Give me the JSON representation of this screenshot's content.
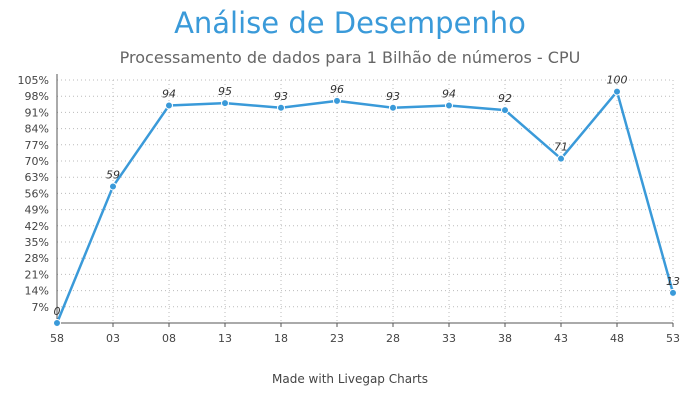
{
  "title": "Análise de Desempenho",
  "subtitle": "Processamento de dados para 1 Bilhão de números - CPU",
  "footer": "Made with Livegap Charts",
  "colors": {
    "title": "#3a9ad9",
    "line": "#3a9ad9",
    "grid": "#bbbbbb",
    "axis": "#555555"
  },
  "chart_data": {
    "type": "line",
    "title": "Análise de Desempenho",
    "subtitle": "Processamento de dados para 1 Bilhão de números - CPU",
    "xlabel": "",
    "ylabel": "",
    "categories": [
      "58",
      "03",
      "08",
      "13",
      "18",
      "23",
      "28",
      "33",
      "38",
      "43",
      "48",
      "53"
    ],
    "series": [
      {
        "values": [
          0,
          59,
          94,
          95,
          93,
          96,
          93,
          94,
          92,
          71,
          100,
          13
        ]
      }
    ],
    "data_labels": [
      "0",
      "59",
      "94",
      "95",
      "93",
      "96",
      "93",
      "94",
      "92",
      "71",
      "100",
      "13"
    ],
    "yticks": [
      "7%",
      "14%",
      "21%",
      "28%",
      "35%",
      "42%",
      "49%",
      "56%",
      "63%",
      "70%",
      "77%",
      "84%",
      "91%",
      "98%",
      "105%"
    ],
    "ytick_values": [
      7,
      14,
      21,
      28,
      35,
      42,
      49,
      56,
      63,
      70,
      77,
      84,
      91,
      98,
      105
    ],
    "ylim": [
      0,
      105
    ],
    "grid": true,
    "legend": "none"
  }
}
